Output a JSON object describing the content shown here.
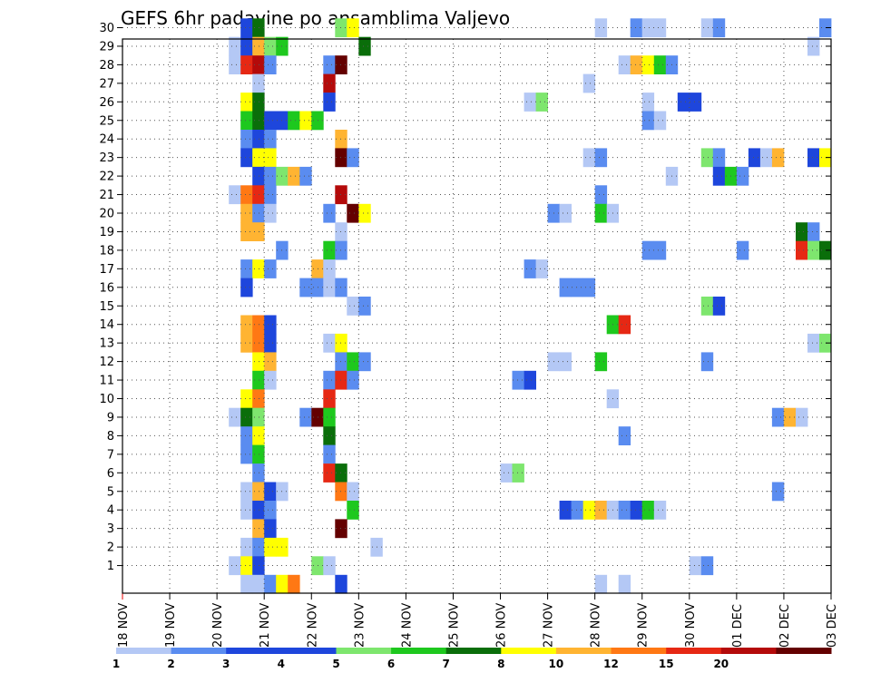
{
  "chart_data": {
    "type": "heatmap",
    "title": "GEFS 6hr padavine po ansamblima Valjevo",
    "xlabel": "",
    "ylabel": "",
    "x_ticks": [
      "18 NOV",
      "19 NOV",
      "20 NOV",
      "21 NOV",
      "22 NOV",
      "23 NOV",
      "24 NOV",
      "25 NOV",
      "26 NOV",
      "27 NOV",
      "28 NOV",
      "29 NOV",
      "30 NOV",
      "01 DEC",
      "02 DEC",
      "03 DEC"
    ],
    "x_range_days": [
      18,
      33
    ],
    "y_ticks": [
      1,
      2,
      3,
      4,
      5,
      6,
      7,
      8,
      9,
      10,
      11,
      12,
      13,
      14,
      15,
      16,
      17,
      18,
      19,
      20,
      21,
      22,
      23,
      24,
      25,
      26,
      27,
      28,
      29,
      30
    ],
    "grid": "dotted",
    "colorbar": {
      "labels": [
        "1",
        "2",
        "3",
        "4",
        "5",
        "6",
        "7",
        "8",
        "10",
        "12",
        "15",
        "20"
      ],
      "colors": [
        "#b4c8f5",
        "#5a8cf0",
        "#1e46dc",
        "#1e46dc",
        "#7ee66e",
        "#1ec81e",
        "#0a6e0a",
        "#ffff00",
        "#ffb432",
        "#ff7814",
        "#e62814",
        "#b40a0a",
        "#640000"
      ]
    },
    "cell_colors": {
      "c1": "#b4c8f5",
      "c2": "#5a8cf0",
      "c3": "#1e46dc",
      "c5": "#7ee66e",
      "c6": "#1ec81e",
      "c7": "#0a6e0a",
      "c8": "#ffff00",
      "c10": "#ffb432",
      "c12": "#ff7814",
      "c15": "#e62814",
      "c20": "#b40a0a",
      "c25": "#640000"
    },
    "time_step_days": 0.25,
    "cells": [
      {
        "m": 30,
        "t": 20.5,
        "c": "c3"
      },
      {
        "m": 30,
        "t": 20.75,
        "c": "c7"
      },
      {
        "m": 30,
        "t": 22.5,
        "c": "c5"
      },
      {
        "m": 30,
        "t": 22.75,
        "c": "c8"
      },
      {
        "m": 30,
        "t": 28.0,
        "c": "c1"
      },
      {
        "m": 30,
        "t": 28.75,
        "c": "c2"
      },
      {
        "m": 30,
        "t": 29.0,
        "c": "c1"
      },
      {
        "m": 30,
        "t": 29.25,
        "c": "c1"
      },
      {
        "m": 30,
        "t": 30.25,
        "c": "c1"
      },
      {
        "m": 30,
        "t": 30.5,
        "c": "c2"
      },
      {
        "m": 30,
        "t": 32.75,
        "c": "c2"
      },
      {
        "m": 29,
        "t": 20.25,
        "c": "c1"
      },
      {
        "m": 29,
        "t": 20.5,
        "c": "c3"
      },
      {
        "m": 29,
        "t": 20.75,
        "c": "c10"
      },
      {
        "m": 29,
        "t": 21.0,
        "c": "c5"
      },
      {
        "m": 29,
        "t": 21.25,
        "c": "c6"
      },
      {
        "m": 29,
        "t": 23.0,
        "c": "c7"
      },
      {
        "m": 29,
        "t": 32.5,
        "c": "c1"
      },
      {
        "m": 28,
        "t": 20.25,
        "c": "c1"
      },
      {
        "m": 28,
        "t": 20.5,
        "c": "c15"
      },
      {
        "m": 28,
        "t": 20.75,
        "c": "c20"
      },
      {
        "m": 28,
        "t": 21.0,
        "c": "c2"
      },
      {
        "m": 28,
        "t": 22.25,
        "c": "c2"
      },
      {
        "m": 28,
        "t": 22.5,
        "c": "c25"
      },
      {
        "m": 28,
        "t": 28.5,
        "c": "c1"
      },
      {
        "m": 28,
        "t": 28.75,
        "c": "c10"
      },
      {
        "m": 28,
        "t": 29.0,
        "c": "c8"
      },
      {
        "m": 28,
        "t": 29.25,
        "c": "c6"
      },
      {
        "m": 28,
        "t": 29.5,
        "c": "c2"
      },
      {
        "m": 27,
        "t": 20.75,
        "c": "c1"
      },
      {
        "m": 27,
        "t": 22.25,
        "c": "c20"
      },
      {
        "m": 27,
        "t": 27.75,
        "c": "c1"
      },
      {
        "m": 26,
        "t": 20.5,
        "c": "c8"
      },
      {
        "m": 26,
        "t": 20.75,
        "c": "c7"
      },
      {
        "m": 26,
        "t": 22.25,
        "c": "c3"
      },
      {
        "m": 26,
        "t": 26.5,
        "c": "c1"
      },
      {
        "m": 26,
        "t": 26.75,
        "c": "c5"
      },
      {
        "m": 26,
        "t": 29.0,
        "c": "c1"
      },
      {
        "m": 26,
        "t": 29.75,
        "c": "c3"
      },
      {
        "m": 26,
        "t": 30.0,
        "c": "c3"
      },
      {
        "m": 25,
        "t": 20.5,
        "c": "c6"
      },
      {
        "m": 25,
        "t": 20.75,
        "c": "c7"
      },
      {
        "m": 25,
        "t": 21.0,
        "c": "c3"
      },
      {
        "m": 25,
        "t": 21.25,
        "c": "c3"
      },
      {
        "m": 25,
        "t": 21.5,
        "c": "c6"
      },
      {
        "m": 25,
        "t": 21.75,
        "c": "c8"
      },
      {
        "m": 25,
        "t": 22.0,
        "c": "c6"
      },
      {
        "m": 25,
        "t": 29.0,
        "c": "c2"
      },
      {
        "m": 25,
        "t": 29.25,
        "c": "c1"
      },
      {
        "m": 24,
        "t": 20.5,
        "c": "c2"
      },
      {
        "m": 24,
        "t": 20.75,
        "c": "c3"
      },
      {
        "m": 24,
        "t": 21.0,
        "c": "c2"
      },
      {
        "m": 24,
        "t": 22.5,
        "c": "c10"
      },
      {
        "m": 23,
        "t": 20.5,
        "c": "c3"
      },
      {
        "m": 23,
        "t": 20.75,
        "c": "c8"
      },
      {
        "m": 23,
        "t": 21.0,
        "c": "c8"
      },
      {
        "m": 23,
        "t": 22.5,
        "c": "c25"
      },
      {
        "m": 23,
        "t": 22.75,
        "c": "c2"
      },
      {
        "m": 23,
        "t": 27.75,
        "c": "c1"
      },
      {
        "m": 23,
        "t": 28.0,
        "c": "c2"
      },
      {
        "m": 23,
        "t": 30.25,
        "c": "c5"
      },
      {
        "m": 23,
        "t": 30.5,
        "c": "c2"
      },
      {
        "m": 23,
        "t": 31.25,
        "c": "c3"
      },
      {
        "m": 23,
        "t": 31.5,
        "c": "c1"
      },
      {
        "m": 23,
        "t": 31.75,
        "c": "c10"
      },
      {
        "m": 23,
        "t": 32.5,
        "c": "c3"
      },
      {
        "m": 23,
        "t": 32.75,
        "c": "c8"
      },
      {
        "m": 22,
        "t": 20.75,
        "c": "c3"
      },
      {
        "m": 22,
        "t": 21.0,
        "c": "c2"
      },
      {
        "m": 22,
        "t": 21.25,
        "c": "c5"
      },
      {
        "m": 22,
        "t": 21.5,
        "c": "c10"
      },
      {
        "m": 22,
        "t": 21.75,
        "c": "c2"
      },
      {
        "m": 22,
        "t": 29.5,
        "c": "c1"
      },
      {
        "m": 22,
        "t": 30.5,
        "c": "c3"
      },
      {
        "m": 22,
        "t": 30.75,
        "c": "c6"
      },
      {
        "m": 22,
        "t": 31.0,
        "c": "c2"
      },
      {
        "m": 21,
        "t": 20.25,
        "c": "c1"
      },
      {
        "m": 21,
        "t": 20.5,
        "c": "c12"
      },
      {
        "m": 21,
        "t": 20.75,
        "c": "c15"
      },
      {
        "m": 21,
        "t": 21.0,
        "c": "c2"
      },
      {
        "m": 21,
        "t": 22.5,
        "c": "c20"
      },
      {
        "m": 21,
        "t": 28.0,
        "c": "c2"
      },
      {
        "m": 20,
        "t": 20.5,
        "c": "c10"
      },
      {
        "m": 20,
        "t": 20.75,
        "c": "c2"
      },
      {
        "m": 20,
        "t": 21.0,
        "c": "c1"
      },
      {
        "m": 20,
        "t": 22.25,
        "c": "c2"
      },
      {
        "m": 20,
        "t": 22.75,
        "c": "c25"
      },
      {
        "m": 20,
        "t": 23.0,
        "c": "c8"
      },
      {
        "m": 20,
        "t": 27.0,
        "c": "c2"
      },
      {
        "m": 20,
        "t": 27.25,
        "c": "c1"
      },
      {
        "m": 20,
        "t": 28.0,
        "c": "c6"
      },
      {
        "m": 20,
        "t": 28.25,
        "c": "c1"
      },
      {
        "m": 19,
        "t": 20.5,
        "c": "c10"
      },
      {
        "m": 19,
        "t": 20.75,
        "c": "c10"
      },
      {
        "m": 19,
        "t": 22.5,
        "c": "c1"
      },
      {
        "m": 19,
        "t": 32.25,
        "c": "c7"
      },
      {
        "m": 19,
        "t": 32.5,
        "c": "c2"
      },
      {
        "m": 18,
        "t": 21.25,
        "c": "c2"
      },
      {
        "m": 18,
        "t": 22.25,
        "c": "c6"
      },
      {
        "m": 18,
        "t": 22.5,
        "c": "c2"
      },
      {
        "m": 18,
        "t": 29.0,
        "c": "c2"
      },
      {
        "m": 18,
        "t": 29.25,
        "c": "c2"
      },
      {
        "m": 18,
        "t": 31.0,
        "c": "c2"
      },
      {
        "m": 18,
        "t": 32.25,
        "c": "c15"
      },
      {
        "m": 18,
        "t": 32.5,
        "c": "c5"
      },
      {
        "m": 18,
        "t": 32.75,
        "c": "c7"
      },
      {
        "m": 17,
        "t": 20.5,
        "c": "c2"
      },
      {
        "m": 17,
        "t": 20.75,
        "c": "c8"
      },
      {
        "m": 17,
        "t": 21.0,
        "c": "c2"
      },
      {
        "m": 17,
        "t": 22.0,
        "c": "c10"
      },
      {
        "m": 17,
        "t": 22.25,
        "c": "c1"
      },
      {
        "m": 17,
        "t": 26.5,
        "c": "c2"
      },
      {
        "m": 17,
        "t": 26.75,
        "c": "c1"
      },
      {
        "m": 16,
        "t": 20.5,
        "c": "c3"
      },
      {
        "m": 16,
        "t": 21.75,
        "c": "c2"
      },
      {
        "m": 16,
        "t": 22.0,
        "c": "c2"
      },
      {
        "m": 16,
        "t": 22.25,
        "c": "c1"
      },
      {
        "m": 16,
        "t": 22.5,
        "c": "c2"
      },
      {
        "m": 16,
        "t": 27.25,
        "c": "c2"
      },
      {
        "m": 16,
        "t": 27.5,
        "c": "c2"
      },
      {
        "m": 16,
        "t": 27.75,
        "c": "c2"
      },
      {
        "m": 15,
        "t": 22.75,
        "c": "c1"
      },
      {
        "m": 15,
        "t": 23.0,
        "c": "c2"
      },
      {
        "m": 15,
        "t": 30.25,
        "c": "c5"
      },
      {
        "m": 15,
        "t": 30.5,
        "c": "c3"
      },
      {
        "m": 14,
        "t": 20.5,
        "c": "c10"
      },
      {
        "m": 14,
        "t": 20.75,
        "c": "c12"
      },
      {
        "m": 14,
        "t": 21.0,
        "c": "c3"
      },
      {
        "m": 14,
        "t": 28.25,
        "c": "c6"
      },
      {
        "m": 14,
        "t": 28.5,
        "c": "c15"
      },
      {
        "m": 13,
        "t": 20.5,
        "c": "c10"
      },
      {
        "m": 13,
        "t": 20.75,
        "c": "c12"
      },
      {
        "m": 13,
        "t": 21.0,
        "c": "c3"
      },
      {
        "m": 13,
        "t": 22.25,
        "c": "c1"
      },
      {
        "m": 13,
        "t": 22.5,
        "c": "c8"
      },
      {
        "m": 13,
        "t": 32.5,
        "c": "c1"
      },
      {
        "m": 13,
        "t": 32.75,
        "c": "c5"
      },
      {
        "m": 12,
        "t": 20.75,
        "c": "c8"
      },
      {
        "m": 12,
        "t": 21.0,
        "c": "c10"
      },
      {
        "m": 12,
        "t": 22.5,
        "c": "c2"
      },
      {
        "m": 12,
        "t": 22.75,
        "c": "c6"
      },
      {
        "m": 12,
        "t": 23.0,
        "c": "c2"
      },
      {
        "m": 12,
        "t": 27.0,
        "c": "c1"
      },
      {
        "m": 12,
        "t": 27.25,
        "c": "c1"
      },
      {
        "m": 12,
        "t": 28.0,
        "c": "c6"
      },
      {
        "m": 12,
        "t": 30.25,
        "c": "c2"
      },
      {
        "m": 11,
        "t": 20.75,
        "c": "c6"
      },
      {
        "m": 11,
        "t": 21.0,
        "c": "c1"
      },
      {
        "m": 11,
        "t": 22.25,
        "c": "c2"
      },
      {
        "m": 11,
        "t": 22.5,
        "c": "c15"
      },
      {
        "m": 11,
        "t": 22.75,
        "c": "c2"
      },
      {
        "m": 11,
        "t": 26.25,
        "c": "c2"
      },
      {
        "m": 11,
        "t": 26.5,
        "c": "c3"
      },
      {
        "m": 10,
        "t": 20.5,
        "c": "c8"
      },
      {
        "m": 10,
        "t": 20.75,
        "c": "c12"
      },
      {
        "m": 10,
        "t": 22.25,
        "c": "c15"
      },
      {
        "m": 10,
        "t": 28.25,
        "c": "c1"
      },
      {
        "m": 9,
        "t": 20.25,
        "c": "c1"
      },
      {
        "m": 9,
        "t": 20.5,
        "c": "c7"
      },
      {
        "m": 9,
        "t": 20.75,
        "c": "c5"
      },
      {
        "m": 9,
        "t": 21.75,
        "c": "c2"
      },
      {
        "m": 9,
        "t": 22.0,
        "c": "c25"
      },
      {
        "m": 9,
        "t": 22.25,
        "c": "c6"
      },
      {
        "m": 9,
        "t": 31.75,
        "c": "c2"
      },
      {
        "m": 9,
        "t": 32.0,
        "c": "c10"
      },
      {
        "m": 9,
        "t": 32.25,
        "c": "c1"
      },
      {
        "m": 8,
        "t": 20.5,
        "c": "c2"
      },
      {
        "m": 8,
        "t": 20.75,
        "c": "c8"
      },
      {
        "m": 8,
        "t": 22.25,
        "c": "c7"
      },
      {
        "m": 8,
        "t": 28.5,
        "c": "c2"
      },
      {
        "m": 7,
        "t": 20.5,
        "c": "c2"
      },
      {
        "m": 7,
        "t": 20.75,
        "c": "c6"
      },
      {
        "m": 7,
        "t": 22.25,
        "c": "c2"
      },
      {
        "m": 6,
        "t": 20.75,
        "c": "c2"
      },
      {
        "m": 6,
        "t": 22.25,
        "c": "c15"
      },
      {
        "m": 6,
        "t": 22.5,
        "c": "c7"
      },
      {
        "m": 6,
        "t": 26.0,
        "c": "c1"
      },
      {
        "m": 6,
        "t": 26.25,
        "c": "c5"
      },
      {
        "m": 5,
        "t": 20.5,
        "c": "c1"
      },
      {
        "m": 5,
        "t": 20.75,
        "c": "c10"
      },
      {
        "m": 5,
        "t": 21.0,
        "c": "c3"
      },
      {
        "m": 5,
        "t": 21.25,
        "c": "c1"
      },
      {
        "m": 5,
        "t": 22.5,
        "c": "c12"
      },
      {
        "m": 5,
        "t": 22.75,
        "c": "c1"
      },
      {
        "m": 5,
        "t": 31.75,
        "c": "c2"
      },
      {
        "m": 4,
        "t": 20.5,
        "c": "c1"
      },
      {
        "m": 4,
        "t": 20.75,
        "c": "c3"
      },
      {
        "m": 4,
        "t": 21.0,
        "c": "c2"
      },
      {
        "m": 4,
        "t": 22.75,
        "c": "c6"
      },
      {
        "m": 4,
        "t": 27.25,
        "c": "c3"
      },
      {
        "m": 4,
        "t": 27.5,
        "c": "c2"
      },
      {
        "m": 4,
        "t": 27.75,
        "c": "c8"
      },
      {
        "m": 4,
        "t": 28.0,
        "c": "c10"
      },
      {
        "m": 4,
        "t": 28.25,
        "c": "c1"
      },
      {
        "m": 4,
        "t": 28.5,
        "c": "c2"
      },
      {
        "m": 4,
        "t": 28.75,
        "c": "c3"
      },
      {
        "m": 4,
        "t": 29.0,
        "c": "c6"
      },
      {
        "m": 4,
        "t": 29.25,
        "c": "c1"
      },
      {
        "m": 3,
        "t": 20.75,
        "c": "c10"
      },
      {
        "m": 3,
        "t": 21.0,
        "c": "c3"
      },
      {
        "m": 3,
        "t": 22.5,
        "c": "c25"
      },
      {
        "m": 2,
        "t": 20.5,
        "c": "c1"
      },
      {
        "m": 2,
        "t": 20.75,
        "c": "c2"
      },
      {
        "m": 2,
        "t": 21.0,
        "c": "c8"
      },
      {
        "m": 2,
        "t": 21.25,
        "c": "c8"
      },
      {
        "m": 2,
        "t": 23.25,
        "c": "c1"
      },
      {
        "m": 1,
        "t": 20.25,
        "c": "c1"
      },
      {
        "m": 1,
        "t": 20.5,
        "c": "c8"
      },
      {
        "m": 1,
        "t": 20.75,
        "c": "c3"
      },
      {
        "m": 1,
        "t": 22.0,
        "c": "c5"
      },
      {
        "m": 1,
        "t": 22.25,
        "c": "c1"
      },
      {
        "m": 1,
        "t": 30.0,
        "c": "c1"
      },
      {
        "m": 1,
        "t": 30.25,
        "c": "c2"
      },
      {
        "m": 0,
        "t": 20.5,
        "c": "c1"
      },
      {
        "m": 0,
        "t": 20.75,
        "c": "c1"
      },
      {
        "m": 0,
        "t": 21.0,
        "c": "c2"
      },
      {
        "m": 0,
        "t": 21.25,
        "c": "c8"
      },
      {
        "m": 0,
        "t": 21.5,
        "c": "c12"
      },
      {
        "m": 0,
        "t": 22.5,
        "c": "c3"
      },
      {
        "m": 0,
        "t": 28.0,
        "c": "c1"
      },
      {
        "m": 0,
        "t": 28.5,
        "c": "c1"
      }
    ]
  }
}
